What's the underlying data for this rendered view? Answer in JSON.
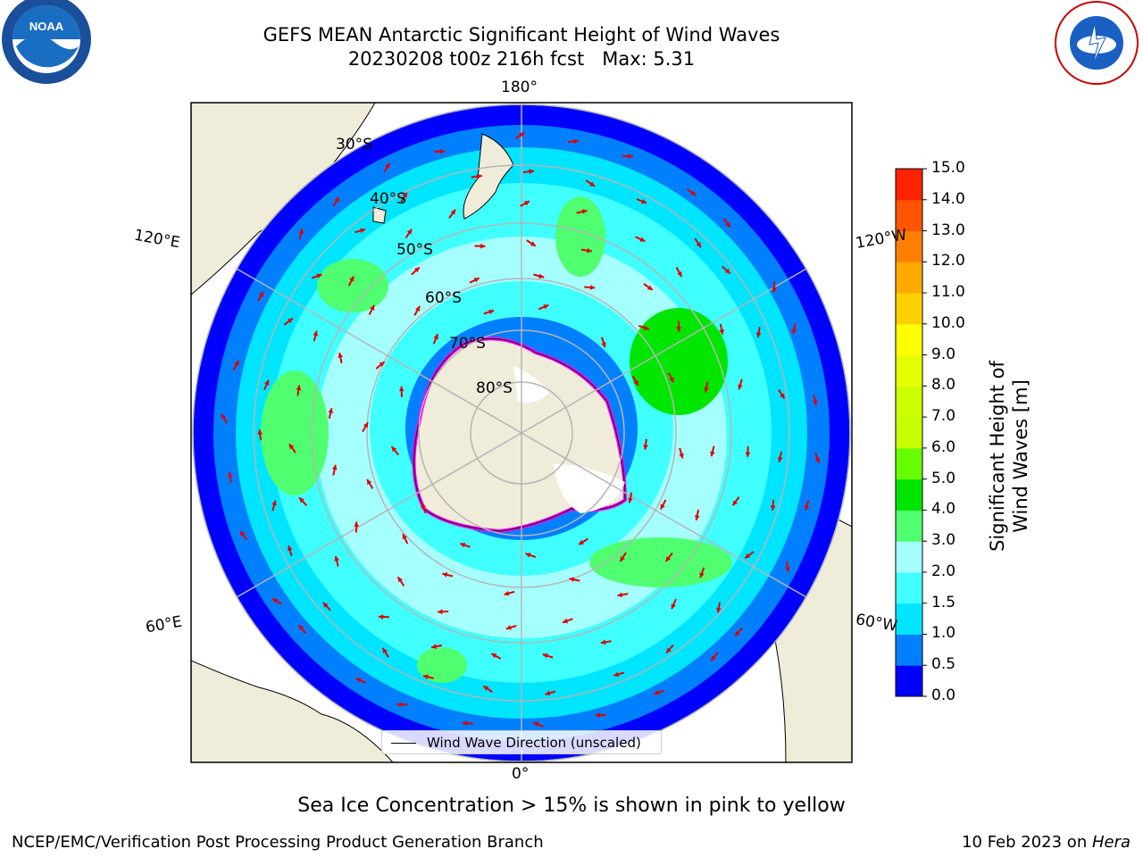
{
  "title": {
    "line1": "GEFS MEAN Antarctic Significant Height of Wind Waves",
    "line2": "20230208 t00z 216h fcst   Max: 5.31"
  },
  "logos": {
    "left": "NOAA",
    "right": "NATIONAL WEATHER SERVICE"
  },
  "map": {
    "projection": "south-polar-stereographic",
    "longitude_labels": {
      "top": "180°",
      "bottom": "0°",
      "left_upper": "120°E",
      "left_lower": "60°E",
      "right_upper": "120°W",
      "right_lower": "60°W"
    },
    "latitude_labels": [
      "30°S",
      "40°S",
      "50°S",
      "60°S",
      "70°S",
      "80°S"
    ],
    "legend_label": "Wind Wave Direction (unscaled)",
    "ocean_color": "#00ffff",
    "land_color": "#efecd9",
    "ice_colors": [
      "#ff00ff",
      "#ff9900",
      "#ffff00"
    ]
  },
  "colorbar": {
    "title": "Significant Height of Wind Waves [m]",
    "ticks": [
      "0.0",
      "0.5",
      "1.0",
      "1.5",
      "2.0",
      "3.0",
      "4.0",
      "5.0",
      "6.0",
      "7.0",
      "8.0",
      "9.0",
      "10.0",
      "11.0",
      "12.0",
      "13.0",
      "14.0",
      "15.0"
    ],
    "colors": [
      "#0000ff",
      "#0080ff",
      "#00e5ff",
      "#40ffff",
      "#a6ffff",
      "#50ff70",
      "#00e600",
      "#66ff00",
      "#c8ff00",
      "#ccff00",
      "#e6ff00",
      "#ffff00",
      "#ffd000",
      "#ffaa00",
      "#ff8000",
      "#ff5500",
      "#ff2200"
    ]
  },
  "caption": "Sea Ice Concentration > 15% is shown in pink to yellow",
  "footer": {
    "left": "NCEP/EMC/Verification Post Processing Product Generation Branch",
    "right_date": "10 Feb 2023 on ",
    "right_machine": "Hera"
  }
}
